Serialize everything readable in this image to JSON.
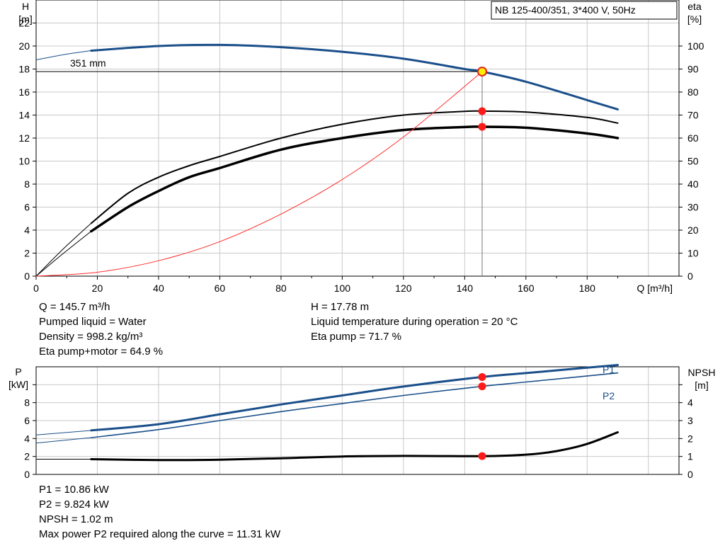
{
  "chart_data": [
    {
      "type": "line",
      "title": "NB 125-400/351, 3*400 V, 50Hz",
      "impeller_label": "351 mm",
      "xlabel": "Q [m³/h]",
      "ylabel": "H\n[m]",
      "y2label": "eta\n[%]",
      "xlim": [
        0,
        210
      ],
      "ylim": [
        0,
        24
      ],
      "y2lim": [
        0,
        120
      ],
      "xticks": [
        "0",
        "20",
        "40",
        "60",
        "80",
        "100",
        "120",
        "140",
        "160",
        "180"
      ],
      "yticks": [
        "0",
        "2",
        "4",
        "6",
        "8",
        "10",
        "12",
        "14",
        "16",
        "18",
        "20",
        "22"
      ],
      "y2ticks": [
        "0",
        "10",
        "20",
        "30",
        "40",
        "50",
        "60",
        "70",
        "80",
        "90",
        "100"
      ],
      "grid": true,
      "series": [
        {
          "name": "H",
          "axis": "left",
          "color": "#1a4f8a",
          "x": [
            18,
            40,
            60,
            80,
            100,
            120,
            140,
            145.7,
            160,
            180,
            190
          ],
          "y": [
            19.6,
            20.0,
            20.1,
            19.9,
            19.5,
            18.9,
            18.0,
            17.78,
            16.9,
            15.3,
            14.5
          ]
        },
        {
          "name": "Eta pump",
          "axis": "right",
          "color": "#000000",
          "x": [
            18,
            30,
            40,
            50,
            60,
            80,
            100,
            120,
            140,
            145.7,
            160,
            180,
            190
          ],
          "y": [
            23,
            36,
            43,
            48,
            52,
            60,
            66,
            70,
            71.6,
            71.7,
            71.3,
            69,
            66.5
          ]
        },
        {
          "name": "Eta pump+motor",
          "axis": "right",
          "color": "#000000",
          "x": [
            18,
            30,
            40,
            50,
            60,
            80,
            100,
            120,
            140,
            145.7,
            160,
            180,
            190
          ],
          "y": [
            19.5,
            30,
            37,
            43,
            47,
            55,
            60,
            63.5,
            64.8,
            64.9,
            64.5,
            62,
            60
          ]
        },
        {
          "name": "System curve",
          "axis": "left",
          "color": "#ff2a2a",
          "x": [
            0,
            20,
            40,
            60,
            80,
            100,
            120,
            145.7
          ],
          "y": [
            0,
            0.34,
            1.34,
            3.0,
            5.4,
            8.4,
            12.1,
            17.78
          ]
        }
      ],
      "operating_point": {
        "Q": 145.7,
        "H": 17.78,
        "eta_pump": 71.7,
        "eta_pump_motor": 64.9
      }
    },
    {
      "type": "line",
      "ylabel": "P\n[kW]",
      "y2label": "NPSH\n[m]",
      "xlim": [
        0,
        210
      ],
      "ylim": [
        0,
        12
      ],
      "y2lim": [
        0,
        6
      ],
      "yticks": [
        "0",
        "2",
        "4",
        "6",
        "8"
      ],
      "y2ticks": [
        "0",
        "1",
        "2",
        "3",
        "4"
      ],
      "grid": true,
      "series": [
        {
          "name": "P1",
          "axis": "left",
          "color": "#1a4f8a",
          "x": [
            18,
            40,
            60,
            80,
            100,
            120,
            145.7,
            160,
            190
          ],
          "y": [
            4.9,
            5.6,
            6.7,
            7.8,
            8.8,
            9.8,
            10.86,
            11.3,
            12.2
          ]
        },
        {
          "name": "P2",
          "axis": "left",
          "color": "#1a4f8a",
          "x": [
            18,
            40,
            60,
            80,
            100,
            120,
            145.7,
            160,
            190
          ],
          "y": [
            4.1,
            5.0,
            6.0,
            7.0,
            7.9,
            8.8,
            9.824,
            10.3,
            11.31
          ]
        },
        {
          "name": "NPSH",
          "axis": "right",
          "color": "#000000",
          "x": [
            18,
            40,
            60,
            80,
            100,
            120,
            145.7,
            160,
            170,
            180,
            190
          ],
          "y": [
            0.85,
            0.8,
            0.82,
            0.9,
            1.0,
            1.03,
            1.02,
            1.1,
            1.3,
            1.7,
            2.35
          ]
        }
      ],
      "operating_point": {
        "Q": 145.7,
        "P1": 10.86,
        "P2": 9.824,
        "NPSH": 1.02
      }
    }
  ],
  "info_top_left": [
    "Q = 145.7 m³/h",
    "Pumped liquid = Water",
    "Density = 998.2 kg/m³",
    "Eta pump+motor = 64.9 %"
  ],
  "info_top_right": [
    "H = 17.78 m",
    "Liquid temperature during operation = 20 °C",
    "Eta pump = 71.7 %"
  ],
  "info_bottom": [
    "P1 = 10.86 kW",
    "P2 = 9.824 kW",
    "NPSH = 1.02 m",
    "Max power P2 required along the curve = 11.31 kW"
  ]
}
